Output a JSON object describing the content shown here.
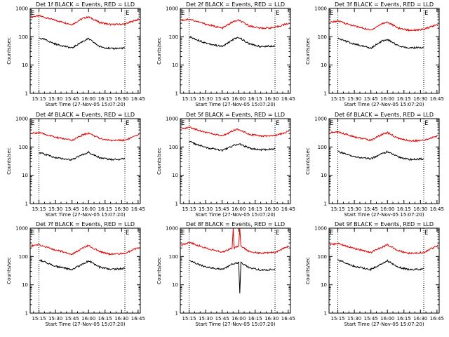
{
  "colors": {
    "events": "#000000",
    "lld": "#e00000"
  },
  "shared": {
    "ylabel": "Counts/sec",
    "xlabel": "Start Time (27-Nov-05 15:07:20)",
    "x_ticks": [
      "15:15",
      "15:30",
      "15:45",
      "16:00",
      "16:15",
      "16:30",
      "16:45"
    ],
    "y_ticks": [
      "1",
      "10",
      "100",
      "1000"
    ],
    "ylim": [
      1,
      1000
    ],
    "y_scale": "log",
    "flag_text": "E"
  },
  "chart_data": [
    {
      "type": "line",
      "title": "Det 1f BLACK = Events, RED = LLD",
      "x_ticks": [
        "15:15",
        "15:30",
        "15:45",
        "16:00",
        "16:15",
        "16:30",
        "16:45"
      ],
      "vlines": [
        "15:15",
        "16:33"
      ],
      "series": [
        {
          "name": "LLD",
          "x": [
            "15:08",
            "15:15",
            "15:30",
            "15:45",
            "15:55",
            "16:00",
            "16:10",
            "16:20",
            "16:33",
            "16:40",
            "16:46"
          ],
          "y": [
            500,
            550,
            380,
            270,
            450,
            500,
            320,
            270,
            280,
            350,
            420
          ]
        },
        {
          "name": "Events",
          "x": [
            "15:15",
            "15:20",
            "15:30",
            "15:45",
            "15:55",
            "16:00",
            "16:10",
            "16:20",
            "16:33"
          ],
          "y": [
            90,
            80,
            55,
            40,
            70,
            85,
            45,
            38,
            40
          ]
        }
      ]
    },
    {
      "type": "line",
      "title": "Det 2f BLACK = Events, RED = LLD",
      "x_ticks": [
        "15:15",
        "15:30",
        "15:45",
        "16:00",
        "16:15",
        "16:30",
        "16:45"
      ],
      "vlines": [
        "15:15",
        "16:33"
      ],
      "series": [
        {
          "name": "LLD",
          "x": [
            "15:08",
            "15:15",
            "15:30",
            "15:45",
            "15:55",
            "16:00",
            "16:10",
            "16:20",
            "16:33",
            "16:40",
            "16:46"
          ],
          "y": [
            380,
            420,
            280,
            200,
            340,
            380,
            240,
            200,
            210,
            260,
            300
          ]
        },
        {
          "name": "Events",
          "x": [
            "15:15",
            "15:20",
            "15:30",
            "15:45",
            "15:55",
            "16:00",
            "16:10",
            "16:20",
            "16:33"
          ],
          "y": [
            100,
            85,
            60,
            45,
            80,
            95,
            55,
            45,
            48
          ]
        }
      ]
    },
    {
      "type": "line",
      "title": "Det 3f BLACK = Events, RED = LLD",
      "x_ticks": [
        "15:15",
        "15:30",
        "15:45",
        "16:00",
        "16:15",
        "16:30",
        "16:45"
      ],
      "vlines": [
        "15:15",
        "16:33"
      ],
      "series": [
        {
          "name": "LLD",
          "x": [
            "15:08",
            "15:15",
            "15:30",
            "15:45",
            "15:55",
            "16:00",
            "16:10",
            "16:20",
            "16:33",
            "16:40",
            "16:46"
          ],
          "y": [
            320,
            360,
            240,
            170,
            290,
            330,
            200,
            170,
            180,
            230,
            270
          ]
        },
        {
          "name": "Events",
          "x": [
            "15:15",
            "15:20",
            "15:30",
            "15:45",
            "15:55",
            "16:00",
            "16:10",
            "16:20",
            "16:33"
          ],
          "y": [
            85,
            75,
            55,
            40,
            70,
            80,
            48,
            40,
            42
          ]
        }
      ]
    },
    {
      "type": "line",
      "title": "Det 4f BLACK = Events, RED = LLD",
      "x_ticks": [
        "15:15",
        "15:30",
        "15:45",
        "16:00",
        "16:15",
        "16:30",
        "16:45"
      ],
      "vlines": [
        "15:15",
        "16:33"
      ],
      "series": [
        {
          "name": "LLD",
          "x": [
            "15:08",
            "15:15",
            "15:30",
            "15:45",
            "15:55",
            "16:00",
            "16:10",
            "16:20",
            "16:33",
            "16:40",
            "16:46"
          ],
          "y": [
            300,
            320,
            220,
            170,
            270,
            310,
            200,
            170,
            175,
            220,
            270
          ]
        },
        {
          "name": "Events",
          "x": [
            "15:15",
            "15:20",
            "15:30",
            "15:45",
            "15:55",
            "16:00",
            "16:10",
            "16:20",
            "16:33"
          ],
          "y": [
            65,
            55,
            42,
            35,
            55,
            65,
            42,
            36,
            38
          ]
        }
      ]
    },
    {
      "type": "line",
      "title": "Det 5f BLACK = Events, RED = LLD",
      "x_ticks": [
        "15:15",
        "15:30",
        "15:45",
        "16:00",
        "16:15",
        "16:30",
        "16:45"
      ],
      "vlines": [
        "15:15",
        "16:33"
      ],
      "series": [
        {
          "name": "LLD",
          "x": [
            "15:08",
            "15:15",
            "15:30",
            "15:45",
            "15:55",
            "16:00",
            "16:10",
            "16:20",
            "16:33",
            "16:40",
            "16:46"
          ],
          "y": [
            420,
            500,
            330,
            240,
            380,
            420,
            280,
            240,
            250,
            300,
            360
          ]
        },
        {
          "name": "Events",
          "x": [
            "15:15",
            "15:20",
            "15:30",
            "15:45",
            "15:55",
            "16:00",
            "16:10",
            "16:20",
            "16:33"
          ],
          "y": [
            160,
            130,
            95,
            75,
            110,
            130,
            90,
            80,
            85
          ]
        }
      ]
    },
    {
      "type": "line",
      "title": "Det 6f BLACK = Events, RED = LLD",
      "x_ticks": [
        "15:15",
        "15:30",
        "15:45",
        "16:00",
        "16:15",
        "16:30",
        "16:45"
      ],
      "vlines": [
        "15:15",
        "16:33"
      ],
      "series": [
        {
          "name": "LLD",
          "x": [
            "15:08",
            "15:15",
            "15:30",
            "15:45",
            "15:55",
            "16:00",
            "16:10",
            "16:20",
            "16:33",
            "16:40",
            "16:46"
          ],
          "y": [
            320,
            340,
            230,
            170,
            280,
            320,
            200,
            165,
            170,
            210,
            250
          ]
        },
        {
          "name": "Events",
          "x": [
            "15:15",
            "15:20",
            "15:30",
            "15:45",
            "15:55",
            "16:00",
            "16:10",
            "16:20",
            "16:33"
          ],
          "y": [
            70,
            60,
            45,
            38,
            58,
            68,
            44,
            36,
            38
          ]
        }
      ]
    },
    {
      "type": "line",
      "title": "Det 7f BLACK = Events, RED = LLD",
      "x_ticks": [
        "15:15",
        "15:30",
        "15:45",
        "16:00",
        "16:15",
        "16:30",
        "16:45"
      ],
      "vlines": [
        "15:15",
        "16:33"
      ],
      "series": [
        {
          "name": "LLD",
          "x": [
            "15:08",
            "15:15",
            "15:30",
            "15:45",
            "15:55",
            "16:00",
            "16:10",
            "16:20",
            "16:33",
            "16:40",
            "16:46"
          ],
          "y": [
            240,
            260,
            170,
            120,
            200,
            240,
            150,
            120,
            130,
            170,
            210
          ]
        },
        {
          "name": "Events",
          "x": [
            "15:15",
            "15:20",
            "15:30",
            "15:45",
            "15:55",
            "16:00",
            "16:10",
            "16:20",
            "16:33"
          ],
          "y": [
            75,
            65,
            45,
            35,
            55,
            70,
            42,
            35,
            38
          ]
        }
      ]
    },
    {
      "type": "line",
      "title": "Det 8f BLACK = Events, RED = LLD",
      "x_ticks": [
        "15:15",
        "15:30",
        "15:45",
        "16:00",
        "16:15",
        "16:30",
        "16:45"
      ],
      "vlines": [
        "15:15",
        "16:33"
      ],
      "series": [
        {
          "name": "LLD",
          "x": [
            "15:08",
            "15:15",
            "15:30",
            "15:45",
            "15:54",
            "15:55",
            "15:56",
            "16:00",
            "16:01",
            "16:02",
            "16:10",
            "16:20",
            "16:33",
            "16:40",
            "16:46"
          ],
          "y": [
            250,
            320,
            200,
            140,
            200,
            1000,
            200,
            230,
            1000,
            230,
            150,
            130,
            140,
            190,
            240
          ]
        },
        {
          "name": "Events",
          "x": [
            "15:15",
            "15:20",
            "15:30",
            "15:45",
            "15:55",
            "16:00",
            "16:01",
            "16:02",
            "16:10",
            "16:20",
            "16:33"
          ],
          "y": [
            70,
            60,
            42,
            35,
            55,
            60,
            5,
            60,
            40,
            33,
            35
          ]
        }
      ]
    },
    {
      "type": "line",
      "title": "Det 9f BLACK = Events, RED = LLD",
      "x_ticks": [
        "15:15",
        "15:30",
        "15:45",
        "16:00",
        "16:15",
        "16:30",
        "16:45"
      ],
      "vlines": [
        "15:15",
        "16:33"
      ],
      "series": [
        {
          "name": "LLD",
          "x": [
            "15:08",
            "15:15",
            "15:30",
            "15:45",
            "15:55",
            "16:00",
            "16:10",
            "16:20",
            "16:33",
            "16:40",
            "16:46"
          ],
          "y": [
            260,
            290,
            190,
            140,
            210,
            260,
            160,
            130,
            140,
            190,
            240
          ]
        },
        {
          "name": "Events",
          "x": [
            "15:15",
            "15:20",
            "15:30",
            "15:45",
            "15:55",
            "16:00",
            "16:10",
            "16:20",
            "16:33"
          ],
          "y": [
            75,
            65,
            45,
            35,
            55,
            70,
            42,
            34,
            36
          ]
        }
      ]
    }
  ]
}
